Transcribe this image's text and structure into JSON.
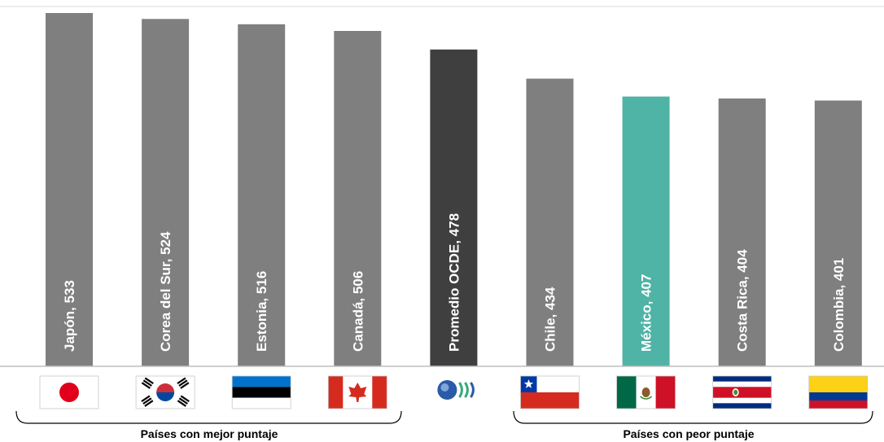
{
  "chart_data": {
    "type": "bar",
    "title": "",
    "xlabel": "",
    "ylabel": "",
    "ylim": [
      0,
      540
    ],
    "grid": false,
    "legend": "none",
    "categories": [
      "Japón",
      "Corea del Sur",
      "Estonia",
      "Canadá",
      "Promedio OCDE",
      "Chile",
      "México",
      "Costa Rica",
      "Colombia"
    ],
    "values": [
      533,
      524,
      516,
      506,
      478,
      434,
      407,
      404,
      401
    ],
    "data_labels": [
      "Japón, 533",
      "Corea del Sur, 524",
      "Estonia, 516",
      "Canadá, 506",
      "Promedio OCDE, 478",
      "Chile, 434",
      "México, 407",
      "Costa Rica, 404",
      "Colombia, 401"
    ],
    "bar_colors": [
      "#7f7f7f",
      "#7f7f7f",
      "#7f7f7f",
      "#7f7f7f",
      "#3f3f3f",
      "#7f7f7f",
      "#4fb3a5",
      "#7f7f7f",
      "#7f7f7f"
    ],
    "flags": [
      "japan-flag",
      "south-korea-flag",
      "estonia-flag",
      "canada-flag",
      "oecd-logo",
      "chile-flag",
      "mexico-flag",
      "costa-rica-flag",
      "colombia-flag"
    ],
    "groups": [
      {
        "label": "Países con mejor puntaje",
        "from": 0,
        "to": 3
      },
      {
        "label": "Países con peor puntaje",
        "from": 5,
        "to": 8
      }
    ]
  }
}
